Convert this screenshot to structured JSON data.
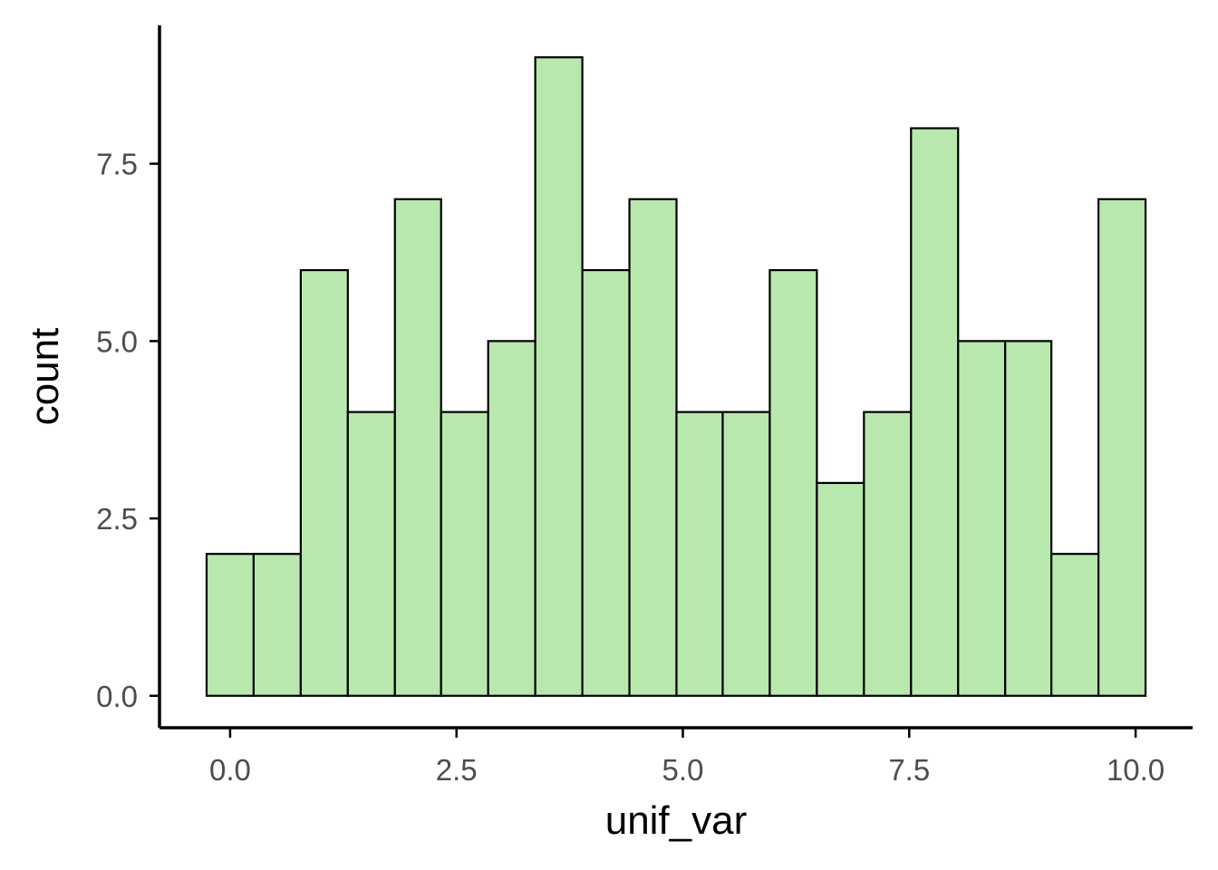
{
  "chart_data": {
    "type": "bar",
    "subtype": "histogram",
    "title": "",
    "xlabel": "unif_var",
    "ylabel": "count",
    "bin_width": 0.5185,
    "bins": [
      {
        "start": -0.26,
        "end": 0.26,
        "count": 2
      },
      {
        "start": 0.26,
        "end": 0.78,
        "count": 2
      },
      {
        "start": 0.78,
        "end": 1.3,
        "count": 6
      },
      {
        "start": 1.3,
        "end": 1.82,
        "count": 4
      },
      {
        "start": 1.82,
        "end": 2.33,
        "count": 7
      },
      {
        "start": 2.33,
        "end": 2.85,
        "count": 4
      },
      {
        "start": 2.85,
        "end": 3.37,
        "count": 5
      },
      {
        "start": 3.37,
        "end": 3.89,
        "count": 9
      },
      {
        "start": 3.89,
        "end": 4.41,
        "count": 6
      },
      {
        "start": 4.41,
        "end": 4.93,
        "count": 7
      },
      {
        "start": 4.93,
        "end": 5.44,
        "count": 4
      },
      {
        "start": 5.44,
        "end": 5.96,
        "count": 4
      },
      {
        "start": 5.96,
        "end": 6.48,
        "count": 6
      },
      {
        "start": 6.48,
        "end": 7.0,
        "count": 3
      },
      {
        "start": 7.0,
        "end": 7.52,
        "count": 4
      },
      {
        "start": 7.52,
        "end": 8.04,
        "count": 8
      },
      {
        "start": 8.04,
        "end": 8.56,
        "count": 5
      },
      {
        "start": 8.56,
        "end": 9.07,
        "count": 5
      },
      {
        "start": 9.07,
        "end": 9.59,
        "count": 2
      },
      {
        "start": 9.59,
        "end": 10.11,
        "count": 7
      }
    ],
    "xlim": [
      -0.78,
      10.63
    ],
    "ylim": [
      -0.45,
      9.45
    ],
    "x_ticks": [
      {
        "value": 0.0,
        "label": "0.0"
      },
      {
        "value": 2.5,
        "label": "2.5"
      },
      {
        "value": 5.0,
        "label": "5.0"
      },
      {
        "value": 7.5,
        "label": "7.5"
      },
      {
        "value": 10.0,
        "label": "10.0"
      }
    ],
    "y_ticks": [
      {
        "value": 0.0,
        "label": "0.0"
      },
      {
        "value": 2.5,
        "label": "2.5"
      },
      {
        "value": 5.0,
        "label": "5.0"
      },
      {
        "value": 7.5,
        "label": "7.5"
      }
    ],
    "grid": false,
    "legend": "none",
    "colors": {
      "bar_fill": "#b8e8ad",
      "bar_stroke": "#000000",
      "axis": "#000000",
      "tick_label": "#4d4d4d",
      "axis_title": "#000000"
    }
  }
}
